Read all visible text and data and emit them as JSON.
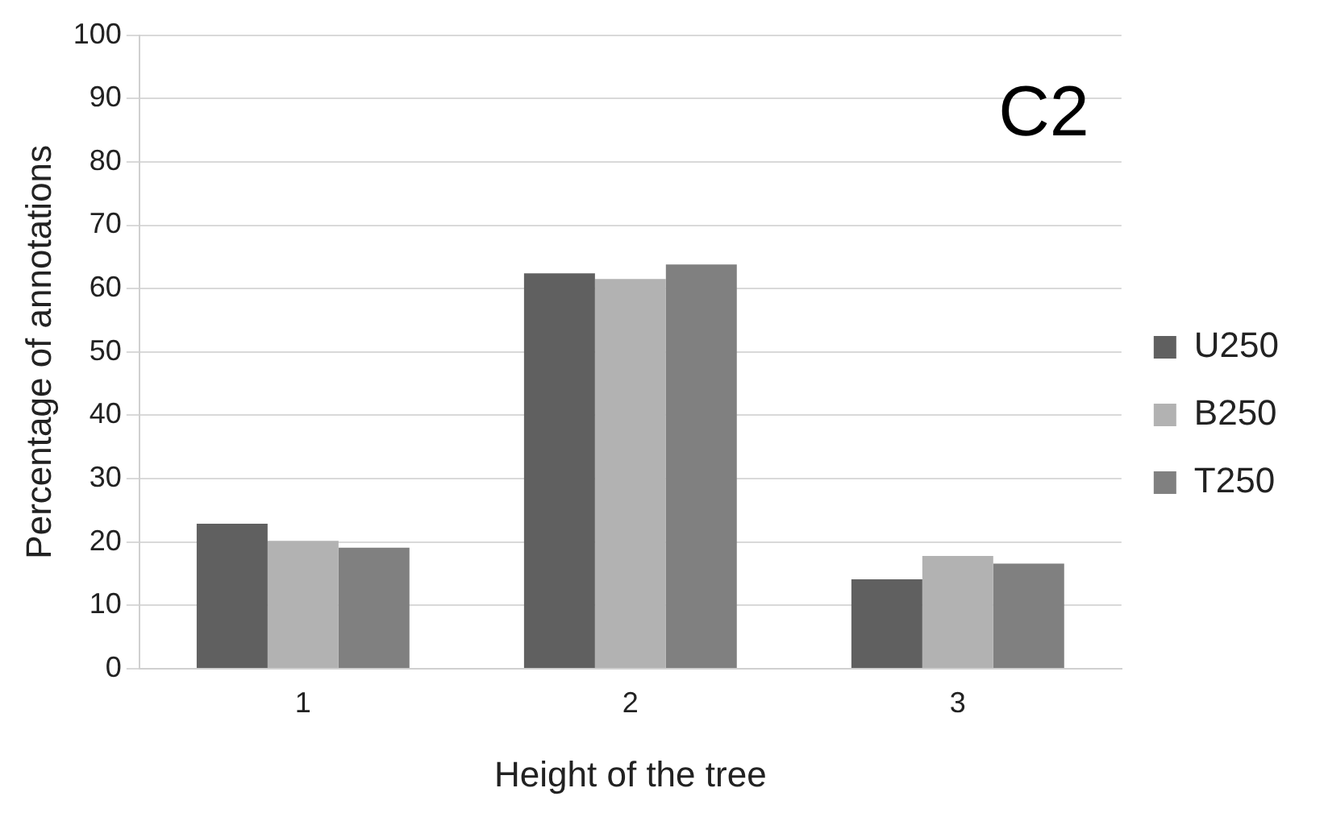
{
  "chart_data": {
    "type": "bar",
    "xlabel": "Height of the tree",
    "ylabel": "Percentage of annotations",
    "annotations": [
      "C2"
    ],
    "categories": [
      "1",
      "2",
      "3"
    ],
    "series": [
      {
        "name": "U250",
        "color": "#606060",
        "values": [
          22.9,
          62.4,
          14.1
        ]
      },
      {
        "name": "B250",
        "color": "#b2b2b2",
        "values": [
          20.2,
          61.5,
          17.8
        ]
      },
      {
        "name": "T250",
        "color": "#808080",
        "values": [
          19.1,
          63.8,
          16.6
        ]
      }
    ],
    "ylim": [
      0,
      100
    ],
    "yticks": [
      0,
      10,
      20,
      30,
      40,
      50,
      60,
      70,
      80,
      90,
      100
    ],
    "grid": "y",
    "legend": "right"
  }
}
